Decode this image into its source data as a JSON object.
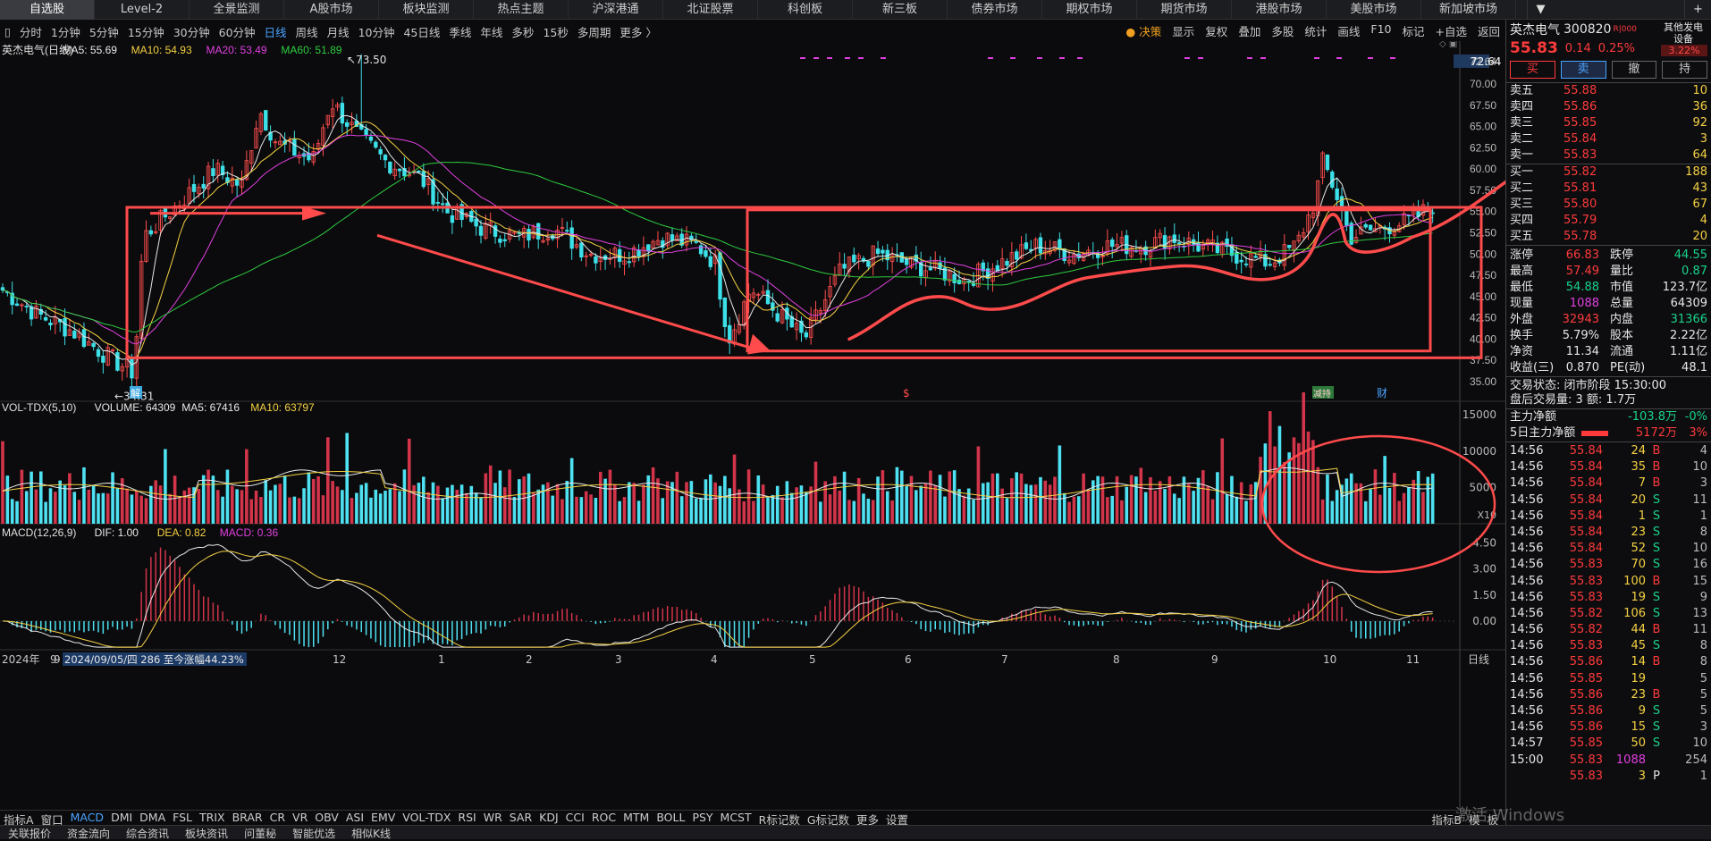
{
  "topnav": {
    "tabs": [
      "自选股",
      "Level-2",
      "全景监测",
      "A股市场",
      "板块监测",
      "热点主题",
      "沪深港通",
      "北证股票",
      "科创板",
      "新三板",
      "债券市场",
      "期权市场",
      "期货市场",
      "港股市场",
      "美股市场",
      "新加坡市场"
    ],
    "active_index": 0,
    "dropdown_label": "▼",
    "add_label": "+"
  },
  "toolbar": {
    "timeframes": [
      "分时",
      "1分钟",
      "5分钟",
      "15分钟",
      "30分钟",
      "60分钟",
      "日线",
      "周线",
      "月线",
      "10分钟",
      "45日线",
      "季线",
      "年线",
      "多秒",
      "15秒",
      "多周期",
      "更多 〉"
    ],
    "active": "日线",
    "right": [
      "决策",
      "显示",
      "复权",
      "叠加",
      "多股",
      "统计",
      "画线",
      "F10",
      "标记",
      "+自选",
      "返回"
    ],
    "left_marker": "▯"
  },
  "ma_legend": {
    "name": "英杰电气(日线)",
    "items": [
      {
        "label": "MA5: 55.69",
        "color": "#e8e8e8"
      },
      {
        "label": "MA10: 54.93",
        "color": "#f5d142"
      },
      {
        "label": "MA20: 53.49",
        "color": "#e040e0"
      },
      {
        "label": "MA60: 51.89",
        "color": "#2ecc40"
      }
    ]
  },
  "vol_legend": {
    "name": "VOL-TDX(5,10)",
    "items": [
      {
        "label": "VOLUME: 64309",
        "color": "#e8e8e8"
      },
      {
        "label": "MA5: 67416",
        "color": "#e8e8e8"
      },
      {
        "label": "MA10: 63797",
        "color": "#f5d142"
      }
    ]
  },
  "macd_legend": {
    "name": "MACD(12,26,9)",
    "items": [
      {
        "label": "DIF: 1.00",
        "color": "#e8e8e8"
      },
      {
        "label": "DEA: 0.82",
        "color": "#f5d142"
      },
      {
        "label": "MACD: 0.36",
        "color": "#e040e0"
      }
    ]
  },
  "annotations": {
    "high": "73.50",
    "low": "34.31",
    "top_right": "72.64",
    "jie": "解",
    "s": "$",
    "zhuanggu": "减持",
    "cai": "财",
    "x10": "X10"
  },
  "footer_status": {
    "year": "2024年",
    "month": "9",
    "date_info": "2024/09/05/四 286 至今涨幅44.23%",
    "period": "日线"
  },
  "chart_data": [
    {
      "type": "candlestick",
      "title": "英杰电气(日线)",
      "ylim": [
        33,
        74
      ],
      "y_ticks": [
        72.64,
        70.0,
        67.5,
        65.0,
        62.5,
        60.0,
        57.5,
        55.0,
        52.5,
        50.0,
        47.5,
        45.0,
        42.5,
        40.0,
        37.5,
        35.0
      ],
      "x_month_labels": [
        "9",
        "10",
        "11",
        "12",
        "2024年",
        "2",
        "3",
        "4",
        "5",
        "6",
        "7",
        "8",
        "9",
        "10",
        "11"
      ],
      "x_month_display": [
        "9",
        "",
        "",
        "12",
        "1",
        "2",
        "3",
        "4",
        "5",
        "6",
        "7",
        "8",
        "9",
        "10",
        "11"
      ],
      "series": [
        {
          "name": "MA5",
          "value": 55.69
        },
        {
          "name": "MA10",
          "value": 54.93
        },
        {
          "name": "MA20",
          "value": 53.49
        },
        {
          "name": "MA60",
          "value": 51.89
        }
      ],
      "key_points": [
        {
          "label": "low",
          "value": 34.31
        },
        {
          "label": "high",
          "value": 73.5
        },
        {
          "label": "last",
          "value": 55.83
        }
      ]
    },
    {
      "type": "bar",
      "title": "VOL-TDX(5,10)",
      "y_ticks": [
        15000,
        10000,
        5000
      ],
      "unit": "X10",
      "series": [
        {
          "name": "VOLUME",
          "value": 64309
        },
        {
          "name": "MA5",
          "value": 67416
        },
        {
          "name": "MA10",
          "value": 63797
        }
      ]
    },
    {
      "type": "bar",
      "title": "MACD(12,26,9)",
      "y_ticks": [
        4.5,
        3.0,
        1.5,
        0.0
      ],
      "series": [
        {
          "name": "DIF",
          "value": 1.0
        },
        {
          "name": "DEA",
          "value": 0.82
        },
        {
          "name": "MACD",
          "value": 0.36
        }
      ]
    }
  ],
  "bottombar": [
    "指标A",
    "窗口",
    "MACD",
    "DMI",
    "DMA",
    "FSL",
    "TRIX",
    "BRAR",
    "CR",
    "VR",
    "OBV",
    "ASI",
    "EMV",
    "VOL-TDX",
    "RSI",
    "WR",
    "SAR",
    "KDJ",
    "CCI",
    "ROC",
    "MTM",
    "BOLL",
    "PSY",
    "MCST",
    "R标记数",
    "G标记数",
    "更多",
    "设置"
  ],
  "bottombar_active": "MACD",
  "bottombar_right": [
    "指标B",
    "模",
    "板"
  ],
  "footerbar": [
    "关联报价",
    "资金流向",
    "综合资讯",
    "板块资讯",
    "问董秘",
    "智能优选",
    "相似K线"
  ],
  "watermark": "激活 Windows",
  "rightpanel": {
    "stock_name": "英杰电气",
    "stock_code": "300820",
    "tag": "R|000",
    "other": "其他发电设备",
    "other_pct": "3.22%",
    "price": "55.83",
    "change": "0.14",
    "change_pct": "0.25%",
    "buttons": [
      "买",
      "卖",
      "撤",
      "持"
    ],
    "sell": [
      [
        "卖五",
        "55.88",
        "10"
      ],
      [
        "卖四",
        "55.86",
        "36"
      ],
      [
        "卖三",
        "55.85",
        "92"
      ],
      [
        "卖二",
        "55.84",
        "3"
      ],
      [
        "卖一",
        "55.83",
        "64"
      ]
    ],
    "buy": [
      [
        "买一",
        "55.82",
        "188"
      ],
      [
        "买二",
        "55.81",
        "43"
      ],
      [
        "买三",
        "55.80",
        "67"
      ],
      [
        "买四",
        "55.79",
        "4"
      ],
      [
        "买五",
        "55.78",
        "20"
      ]
    ],
    "stats": [
      [
        "涨停",
        "66.83",
        "跌停",
        "44.55"
      ],
      [
        "最高",
        "57.49",
        "量比",
        "0.87"
      ],
      [
        "最低",
        "54.88",
        "市值",
        "123.7亿"
      ],
      [
        "现量",
        "1088",
        "总量",
        "64309"
      ],
      [
        "外盘",
        "32943",
        "内盘",
        "31366"
      ],
      [
        "换手",
        "5.79%",
        "股本",
        "2.22亿"
      ],
      [
        "净资",
        "11.34",
        "流通",
        "1.11亿"
      ],
      [
        "收益(三)",
        "0.870",
        "PE(动)",
        "48.1"
      ]
    ],
    "trade_state": "交易状态: 闭市阶段 15:30:00",
    "after_hours": "盘后交易量: 3  额: 1.7万",
    "main_net": {
      "label": "主力净额",
      "value": "-103.8万",
      "pct": "-0%"
    },
    "main_net5": {
      "label": "5日主力净额",
      "value": "5172万",
      "pct": "3%"
    },
    "ticks": [
      [
        "14:56",
        "55.84",
        "24",
        "B",
        "4"
      ],
      [
        "14:56",
        "55.84",
        "35",
        "B",
        "10"
      ],
      [
        "14:56",
        "55.84",
        "7",
        "B",
        "3"
      ],
      [
        "14:56",
        "55.84",
        "20",
        "S",
        "11"
      ],
      [
        "14:56",
        "55.84",
        "1",
        "S",
        "1"
      ],
      [
        "14:56",
        "55.84",
        "23",
        "S",
        "8"
      ],
      [
        "14:56",
        "55.84",
        "52",
        "S",
        "10"
      ],
      [
        "14:56",
        "55.83",
        "70",
        "S",
        "16"
      ],
      [
        "14:56",
        "55.83",
        "100",
        "B",
        "15"
      ],
      [
        "14:56",
        "55.83",
        "19",
        "S",
        "9"
      ],
      [
        "14:56",
        "55.82",
        "106",
        "S",
        "13"
      ],
      [
        "14:56",
        "55.82",
        "44",
        "B",
        "11"
      ],
      [
        "14:56",
        "55.83",
        "45",
        "S",
        "8"
      ],
      [
        "14:56",
        "55.86",
        "14",
        "B",
        "8"
      ],
      [
        "14:56",
        "55.85",
        "19",
        "",
        "5"
      ],
      [
        "14:56",
        "55.86",
        "23",
        "B",
        "5"
      ],
      [
        "14:56",
        "55.86",
        "9",
        "S",
        "5"
      ],
      [
        "14:56",
        "55.86",
        "15",
        "S",
        "3"
      ],
      [
        "14:57",
        "55.85",
        "50",
        "S",
        "10"
      ],
      [
        "15:00",
        "55.83",
        "1088",
        "",
        "254"
      ],
      [
        "",
        "55.83",
        "3",
        "P",
        "1"
      ]
    ]
  }
}
